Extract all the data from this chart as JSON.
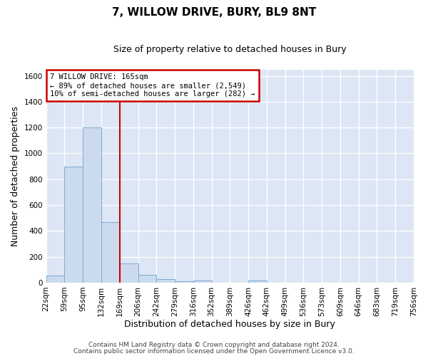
{
  "title": "7, WILLOW DRIVE, BURY, BL9 8NT",
  "subtitle": "Size of property relative to detached houses in Bury",
  "xlabel": "Distribution of detached houses by size in Bury",
  "ylabel": "Number of detached properties",
  "bar_values": [
    55,
    900,
    1200,
    470,
    150,
    60,
    30,
    10,
    15,
    0,
    0,
    15,
    0,
    0,
    0,
    0,
    0,
    0,
    0,
    0
  ],
  "bin_labels": [
    "22sqm",
    "59sqm",
    "95sqm",
    "132sqm",
    "169sqm",
    "206sqm",
    "242sqm",
    "279sqm",
    "316sqm",
    "352sqm",
    "389sqm",
    "426sqm",
    "462sqm",
    "499sqm",
    "536sqm",
    "573sqm",
    "609sqm",
    "646sqm",
    "683sqm",
    "719sqm",
    "756sqm"
  ],
  "bar_color": "#ccdaee",
  "bar_edge_color": "#7aaad0",
  "vline_x_idx": 4,
  "vline_color": "#cc0000",
  "ylim": [
    0,
    1650
  ],
  "yticks": [
    0,
    200,
    400,
    600,
    800,
    1000,
    1200,
    1400,
    1600
  ],
  "annotation_title": "7 WILLOW DRIVE: 165sqm",
  "annotation_line1": "← 89% of detached houses are smaller (2,549)",
  "annotation_line2": "10% of semi-detached houses are larger (282) →",
  "annotation_box_color": "#ffffff",
  "annotation_border_color": "#cc0000",
  "footer_line1": "Contains HM Land Registry data © Crown copyright and database right 2024.",
  "footer_line2": "Contains public sector information licensed under the Open Government Licence v3.0.",
  "background_color": "#ffffff",
  "plot_background": "#dce6f5",
  "grid_color": "#ffffff",
  "title_fontsize": 11,
  "subtitle_fontsize": 9,
  "axis_label_fontsize": 9,
  "tick_fontsize": 7.5,
  "footer_fontsize": 6.5
}
